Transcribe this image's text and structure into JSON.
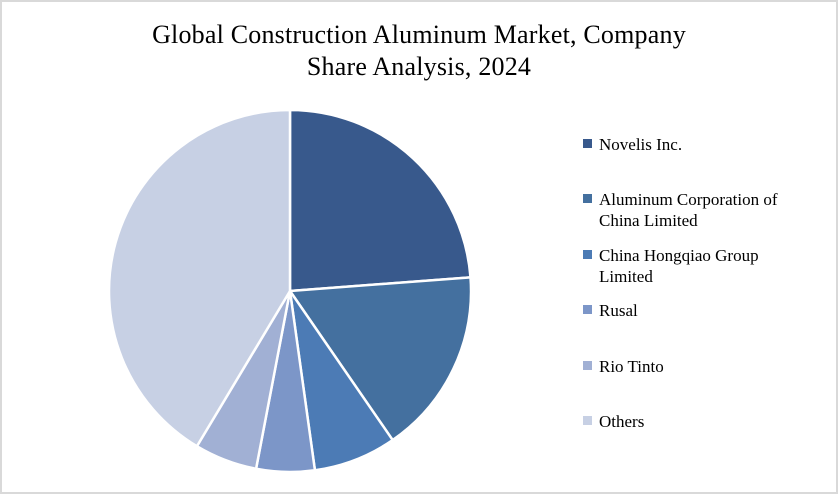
{
  "frame": {
    "border_color": "#d9d9d9",
    "background_color": "#ffffff"
  },
  "chart_data": {
    "type": "pie",
    "title": "Global Construction Aluminum Market, Company Share Analysis, 2024",
    "title_lines": [
      "Global Construction Aluminum Market, Company",
      "Share Analysis, 2024"
    ],
    "categories": [
      "Novelis Inc.",
      "Aluminum Corporation of China Limited",
      "China Hongqiao Group Limited",
      "Rusal",
      "Rio Tinto",
      "Others"
    ],
    "values": [
      23.8,
      16.6,
      7.4,
      5.2,
      5.6,
      41.4
    ],
    "values_unit": "percent market share (estimated from slice angles; no data labels shown)",
    "colors": [
      "#38598C",
      "#44709F",
      "#4C7BB5",
      "#7C96C8",
      "#A1B0D4",
      "#C7D0E4"
    ],
    "slice_border_color": "#ffffff",
    "start_angle_deg": 0,
    "direction": "clockwise",
    "legend_position": "right",
    "data_labels": false,
    "grid": false
  }
}
